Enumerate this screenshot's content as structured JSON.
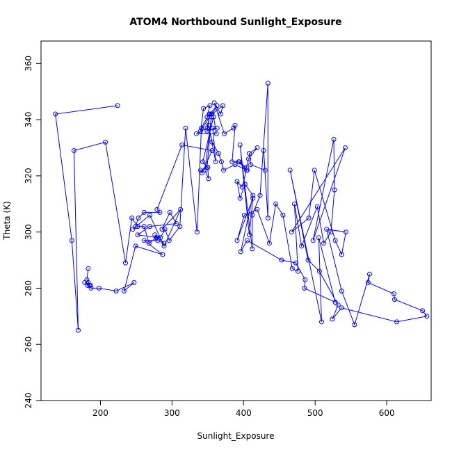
{
  "chart_data": {
    "type": "line",
    "title": "ATOM4 Northbound Sunlight_Exposure",
    "xlabel": "Sunlight_Exposure",
    "ylabel": "Theta (K)",
    "xlim": [
      117,
      662
    ],
    "ylim": [
      240,
      368
    ],
    "xticks": [
      200,
      300,
      400,
      500,
      600
    ],
    "yticks": [
      240,
      260,
      280,
      300,
      320,
      340,
      360
    ],
    "grid": false,
    "legend": "none",
    "markers": "open-circle",
    "color": "#0000ff",
    "series": [
      {
        "x": [
          224,
          137,
          160,
          169,
          163,
          207,
          235,
          244,
          252,
          261,
          268,
          278,
          284,
          290,
          296,
          311,
          319,
          335,
          341,
          352,
          355,
          340,
          344,
          353,
          349,
          363,
          356,
          371,
          368,
          359,
          373,
          386,
          388,
          384,
          394,
          404,
          407,
          419,
          408,
          410,
          430,
          428,
          434,
          434,
          423,
          412,
          412,
          395,
          408,
          413,
          391,
          401,
          419,
          436,
          445,
          455,
          468,
          476,
          471,
          481,
          503,
          512,
          522,
          527,
          526,
          497,
          542,
          467,
          491,
          499,
          528,
          537,
          543,
          516,
          537,
          555,
          576,
          574,
          610,
          611,
          650,
          656,
          614,
          537,
          524,
          532,
          506,
          490,
          465,
          509,
          505,
          528,
          485,
          486,
          473,
          453,
          405,
          396,
          413,
          402,
          395,
          391,
          398,
          404,
          393,
          405,
          388,
          372,
          369,
          365,
          356,
          351,
          361,
          357,
          363,
          349,
          353,
          349,
          334,
          362,
          358,
          343,
          349,
          355,
          346,
          351,
          350,
          340,
          342,
          356,
          314,
          279,
          283,
          261,
          253,
          249,
          245,
          269,
          289,
          312,
          286,
          297,
          306,
          269,
          252,
          279,
          276,
          289,
          280,
          261,
          287,
          249,
          233,
          247,
          222,
          198,
          187,
          182,
          178,
          185,
          183,
          186,
          181,
          183
        ],
        "y": [
          345,
          342,
          297,
          265,
          329,
          332,
          289,
          305,
          302,
          302,
          296,
          298,
          298,
          301,
          297,
          302,
          337,
          300,
          337,
          342,
          342,
          336,
          344,
          345,
          341,
          345,
          342,
          345,
          342,
          346,
          335,
          337,
          338,
          325,
          325,
          323,
          326,
          330,
          328,
          324,
          322,
          329,
          305,
          353,
          313,
          306,
          294,
          331,
          299,
          312,
          297,
          306,
          308,
          296,
          310,
          306,
          287,
          286,
          310,
          295,
          309,
          296,
          300,
          315,
          333,
          297,
          330,
          300,
          305,
          322,
          297,
          292,
          300,
          301,
          279,
          267,
          285,
          282,
          278,
          276,
          272,
          270,
          268,
          273,
          269,
          274,
          286,
          290,
          322,
          268,
          298,
          275,
          280,
          283,
          289,
          290,
          297,
          293,
          313,
          317,
          312,
          318,
          316,
          322,
          325,
          322,
          324,
          322,
          325,
          328,
          332,
          338,
          325,
          337,
          337,
          336,
          342,
          337,
          335,
          335,
          341,
          325,
          323,
          341,
          322,
          319,
          323,
          322,
          321,
          329,
          331,
          308,
          307,
          307,
          305,
          302,
          301,
          306,
          295,
          308,
          301,
          307,
          303,
          302,
          299,
          298,
          299,
          296,
          297,
          297,
          292,
          295,
          279,
          282,
          279,
          280,
          280,
          281,
          282,
          281,
          282,
          281,
          283,
          287
        ]
      }
    ]
  }
}
